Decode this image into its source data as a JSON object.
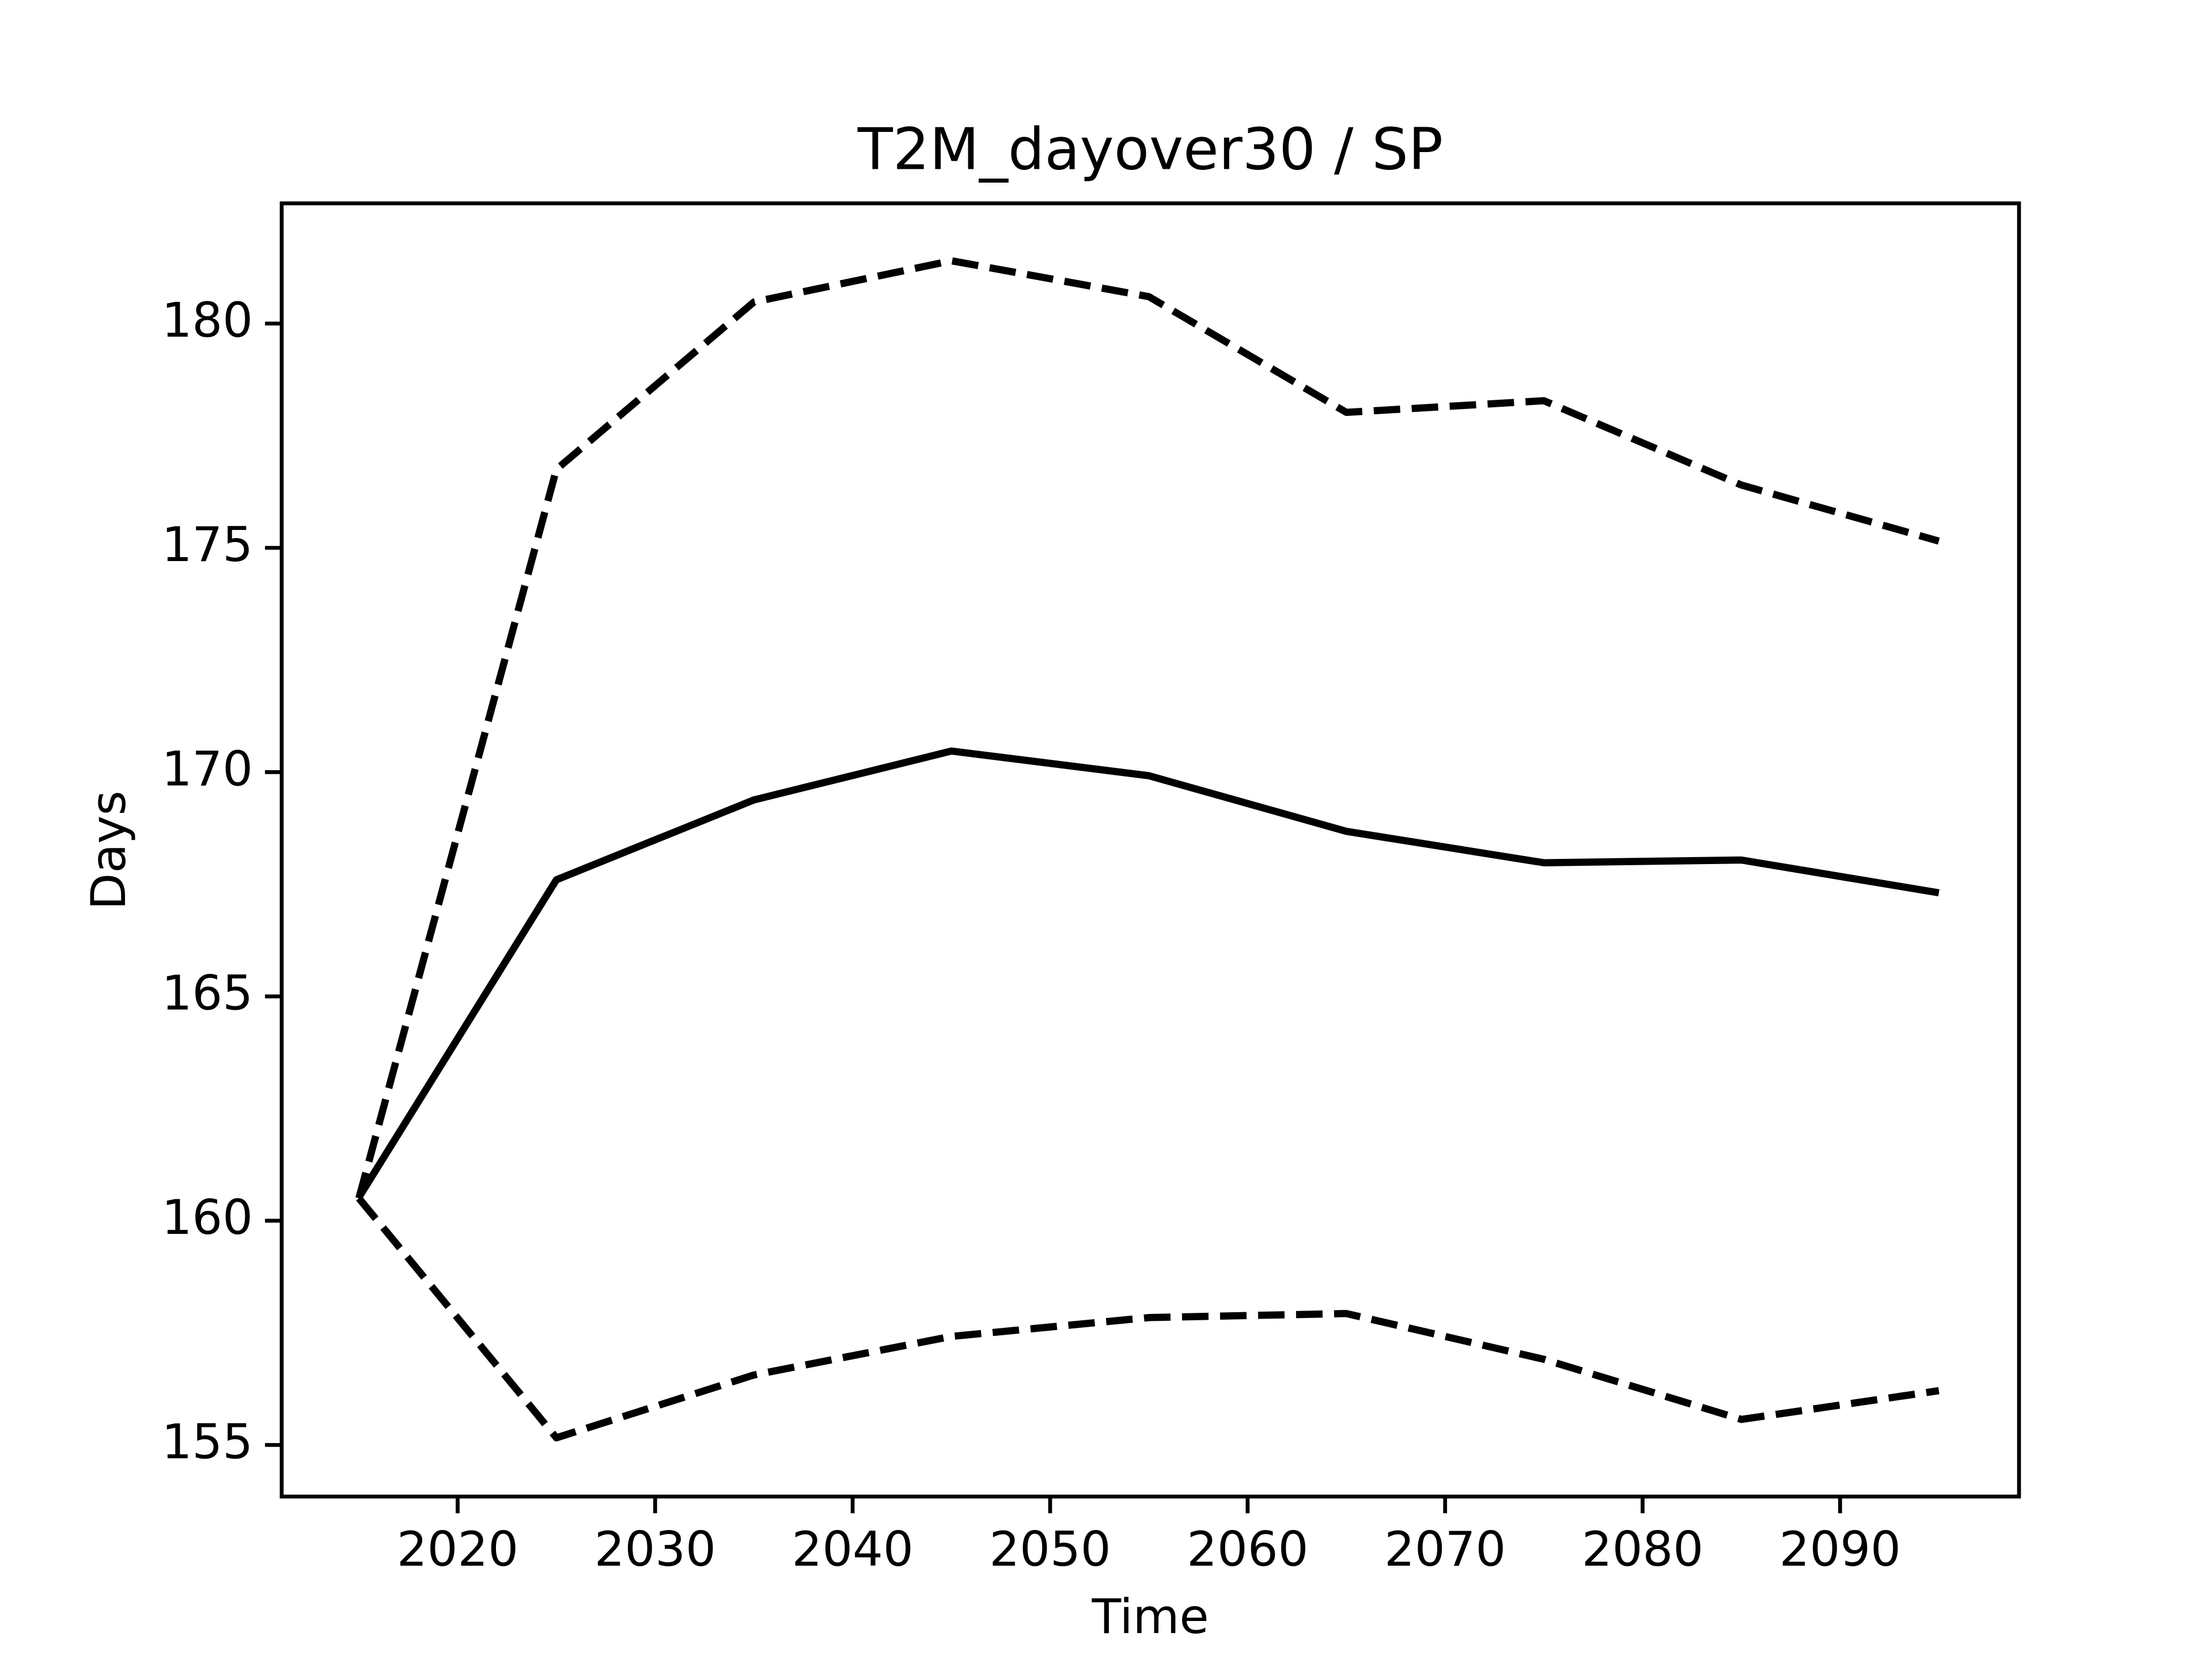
{
  "chart_data": {
    "type": "line",
    "title": "T2M_dayover30 / SP",
    "xlabel": "Time",
    "ylabel": "Days",
    "x": [
      2015,
      2025,
      2035,
      2045,
      2055,
      2065,
      2075,
      2085,
      2095
    ],
    "series": [
      {
        "color": "#000000",
        "linestyle": "dashed",
        "values": [
          160.5,
          176.75,
          180.48,
          181.4,
          180.6,
          178.02,
          178.28,
          176.4,
          175.15
        ]
      },
      {
        "color": "#000000",
        "linestyle": "solid",
        "values": [
          160.52,
          167.6,
          169.38,
          170.47,
          169.92,
          168.68,
          167.98,
          168.04,
          167.31
        ]
      },
      {
        "color": "#000000",
        "linestyle": "dashed",
        "values": [
          160.5,
          155.16,
          156.56,
          157.42,
          157.84,
          157.93,
          156.91,
          155.57,
          156.21
        ]
      }
    ],
    "xlim": [
      2011.09,
      2099.06
    ],
    "xticks": [
      2020,
      2030,
      2040,
      2050,
      2060,
      2070,
      2080,
      2090
    ],
    "ylim": [
      153.85,
      182.68
    ],
    "yticks": [
      155,
      160,
      165,
      170,
      175,
      180
    ],
    "grid": false
  }
}
